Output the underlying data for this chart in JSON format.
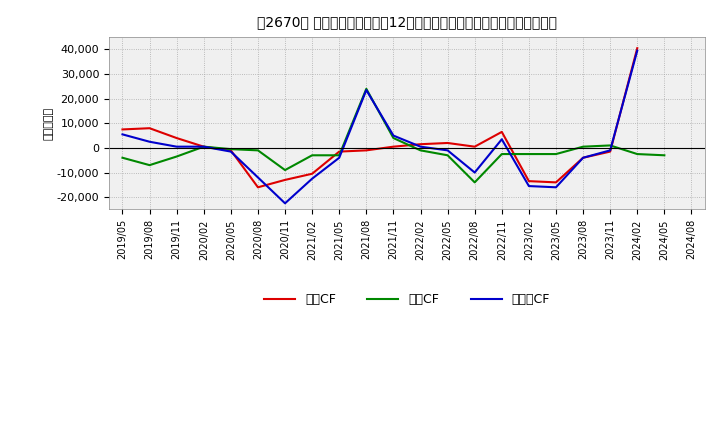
{
  "title": "［2670］ キャッシュフローの12か月移動合計の対前年同期増減額の推移",
  "ylabel": "（百万円）",
  "background_color": "#ffffff",
  "plot_bg_color": "#f0f0f0",
  "grid_color": "#aaaaaa",
  "ylim": [
    -25000,
    45000
  ],
  "yticks": [
    -20000,
    -10000,
    0,
    10000,
    20000,
    30000,
    40000
  ],
  "legend_labels": [
    "営業CF",
    "投資CF",
    "フリーCF"
  ],
  "colors": {
    "eigyo": "#dd0000",
    "toshi": "#008800",
    "free": "#0000cc"
  },
  "x_labels": [
    "2019/05",
    "2019/08",
    "2019/11",
    "2020/02",
    "2020/05",
    "2020/08",
    "2020/11",
    "2021/02",
    "2021/05",
    "2021/08",
    "2021/11",
    "2022/02",
    "2022/05",
    "2022/08",
    "2022/11",
    "2023/02",
    "2023/05",
    "2023/08",
    "2023/11",
    "2024/02",
    "2024/05",
    "2024/08"
  ],
  "eigyo_cf": [
    7500,
    8000,
    4000,
    500,
    -1000,
    -16000,
    -13000,
    -10500,
    -1500,
    -1000,
    500,
    1500,
    2000,
    500,
    6500,
    -13500,
    -14000,
    -4000,
    -1500,
    40500,
    null,
    null
  ],
  "toshi_cf": [
    -4000,
    -7000,
    -3500,
    500,
    -500,
    -1000,
    -9000,
    -3000,
    -3000,
    24000,
    4000,
    -1000,
    -3000,
    -14000,
    -2500,
    -2500,
    -2500,
    500,
    1000,
    -2500,
    -3000,
    null
  ],
  "free_cf": [
    5500,
    2500,
    500,
    500,
    -1500,
    -12000,
    -22500,
    -12500,
    -4000,
    23500,
    5000,
    500,
    -1000,
    -10000,
    3500,
    -15500,
    -16000,
    -4000,
    -1000,
    39500,
    null,
    null
  ]
}
